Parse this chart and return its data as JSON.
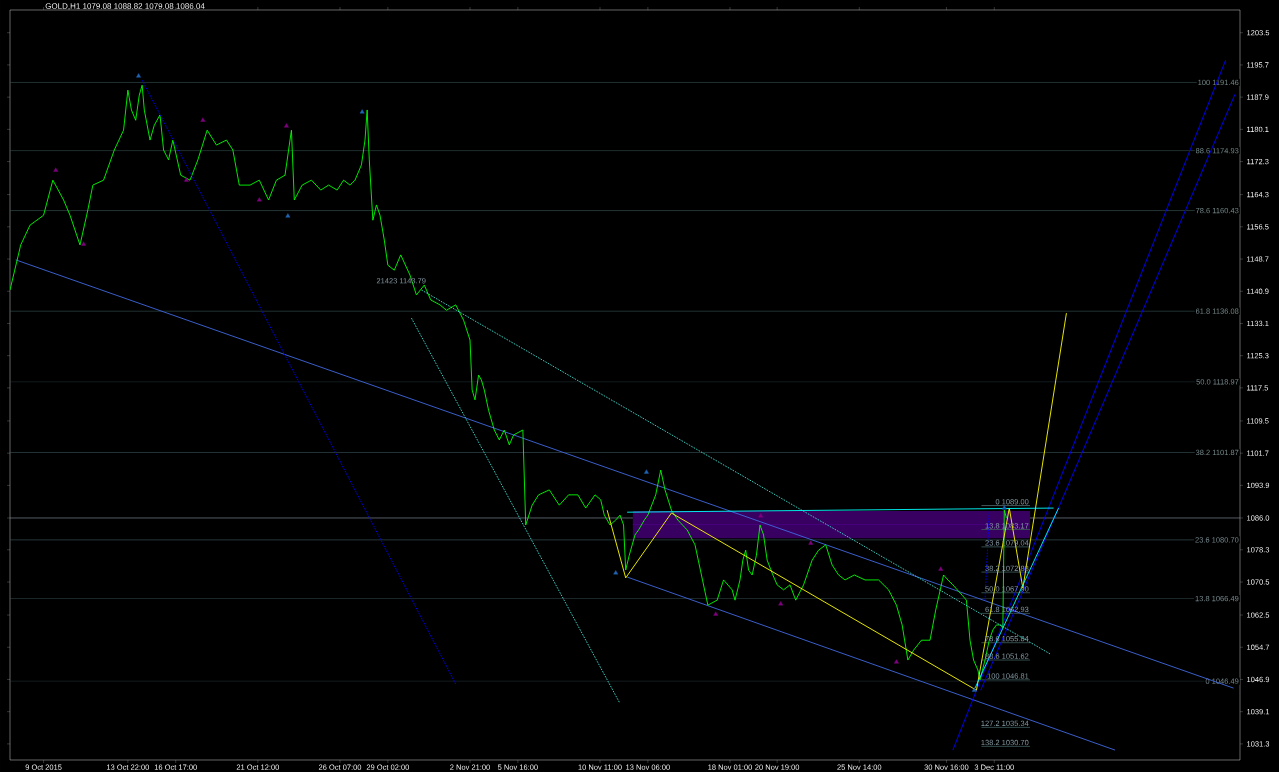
{
  "chart_data": {
    "type": "line",
    "title": "GOLD,H1  1079.08 1088.82 1079.08 1086.04",
    "xlim": [
      "2015-10-07T01:00",
      "2015-12-17T19:00"
    ],
    "ylim": [
      1027.4,
      1209.0
    ],
    "xticks": [
      {
        "value": "2015-10-09",
        "label": "9 Oct 2015"
      },
      {
        "value": "2015-10-13T22:00",
        "label": "13 Oct 22:00"
      },
      {
        "value": "2015-10-16T17:00",
        "label": "16 Oct 17:00"
      },
      {
        "value": "2015-10-21T12:00",
        "label": "21 Oct 12:00"
      },
      {
        "value": "2015-10-26T07:00",
        "label": "26 Oct 07:00"
      },
      {
        "value": "2015-10-29T02:00",
        "label": "29 Oct 02:00"
      },
      {
        "value": "2015-11-02T21:00",
        "label": "2 Nov 21:00"
      },
      {
        "value": "2015-11-05T16:00",
        "label": "5 Nov 16:00"
      },
      {
        "value": "2015-11-10T11:00",
        "label": "10 Nov 11:00"
      },
      {
        "value": "2015-11-13T06:00",
        "label": "13 Nov 06:00"
      },
      {
        "value": "2015-11-18T01:00",
        "label": "18 Nov 01:00"
      },
      {
        "value": "2015-11-20T19:00",
        "label": "20 Nov 19:00"
      },
      {
        "value": "2015-11-25T14:00",
        "label": "25 Nov 14:00"
      },
      {
        "value": "2015-11-30T16:00",
        "label": "30 Nov 16:00"
      },
      {
        "value": "2015-12-03T11:00",
        "label": "3 Dec 11:00"
      }
    ],
    "yticks": [
      1031.3,
      1039.1,
      1046.9,
      1054.7,
      1062.5,
      1070.5,
      1078.3,
      {
        "value": 1086.0,
        "label": "1086.0"
      },
      1093.9,
      1101.7,
      1109.5,
      1117.5,
      1125.3,
      1133.1,
      1140.9,
      1148.7,
      1156.5,
      1164.3,
      1172.3,
      1180.1,
      1187.9,
      1195.7,
      1203.5
    ],
    "ref_lines": [
      {
        "axis": "y",
        "value": 1191.46,
        "label": "100 1191.46",
        "color": "#385454"
      },
      {
        "axis": "y",
        "value": 1174.93,
        "label": "88.6 1174.93",
        "color": "#395556"
      },
      {
        "axis": "y",
        "value": 1160.43,
        "label": "78.6 1160.43",
        "color": "#3a5658"
      },
      {
        "axis": "y",
        "value": 1136.08,
        "label": "61.8 1136.08",
        "color": "#3b575a"
      },
      {
        "axis": "y",
        "value": 1118.97,
        "label": "50.0 1118.97",
        "color": "#3c585c"
      },
      {
        "axis": "y",
        "value": 1101.87,
        "label": "38.2 1101.87",
        "color": "#3d595e"
      },
      {
        "axis": "y",
        "value": 1080.7,
        "label": "23.6 1080.70",
        "color": "#3e5a60"
      },
      {
        "axis": "y",
        "value": 1066.49,
        "label": "13.8 1066.49",
        "color": "#3f5b62"
      },
      {
        "axis": "y",
        "value": 1046.49,
        "label": "0 1046.49",
        "color": "#405c64"
      },
      {
        "axis": "y",
        "value": 1086.0,
        "color": "#8c9aa8"
      }
    ],
    "annotations": [
      {
        "text": "21423 1143.79",
        "x": "2015-10-31T09:00",
        "y": 1142.5
      },
      {
        "text": "0 1089.00",
        "x": "2015-12-05T13:00",
        "y": 1089.0
      },
      {
        "text": "13.8 1083.17",
        "x": "2015-12-05T13:00",
        "y": 1083.17
      },
      {
        "text": "23.6 1079.04",
        "x": "2015-12-05T13:00",
        "y": 1079.04
      },
      {
        "text": "38.2 1072.88",
        "x": "2015-12-05T13:00",
        "y": 1072.88
      },
      {
        "text": "50.0 1067.90",
        "x": "2015-12-05T13:00",
        "y": 1067.9
      },
      {
        "text": "61.8 1062.93",
        "x": "2015-12-05T13:00",
        "y": 1062.93
      },
      {
        "text": "78.6 1055.84",
        "x": "2015-12-05T13:00",
        "y": 1055.84
      },
      {
        "text": "88.6 1051.62",
        "x": "2015-12-05T13:00",
        "y": 1051.62
      },
      {
        "text": "100 1046.81",
        "x": "2015-12-05T13:00",
        "y": 1046.81
      },
      {
        "text": "127.2 1035.34",
        "x": "2015-12-05T13:00",
        "y": 1035.34
      },
      {
        "text": "138.2 1030.70",
        "x": "2015-12-05T13:00",
        "y": 1030.7
      }
    ],
    "series": [
      {
        "type": "line",
        "color": "#4b0082",
        "x": [
          "2015-11-12T09:00",
          "2015-12-05T13:00"
        ],
        "values": [
          1084.4,
          1084.4
        ],
        "lower": [
          1081.1,
          1081.1
        ],
        "upper": [
          1087.7,
          1087.7
        ]
      },
      {
        "type": "line",
        "color": "#4a6466",
        "x": [
          "2015-12-02T17:00",
          "2015-12-05T13:00"
        ],
        "values": [
          1089.0,
          1089.0
        ]
      },
      {
        "type": "line",
        "color": "#3a5555",
        "x": [
          "2015-12-02T17:00",
          "2015-12-05T13:00"
        ],
        "values": [
          1083.2,
          1083.2
        ]
      },
      {
        "type": "line",
        "color": "#3a5555",
        "x": [
          "2015-12-02T17:00",
          "2015-12-05T13:00"
        ],
        "values": [
          1079.0,
          1079.0
        ]
      },
      {
        "type": "line",
        "color": "#3a5555",
        "x": [
          "2015-12-02T17:00",
          "2015-12-05T13:00"
        ],
        "values": [
          1072.9,
          1072.9
        ]
      },
      {
        "type": "line",
        "color": "#3a5555",
        "x": [
          "2015-12-02T17:00",
          "2015-12-05T13:00"
        ],
        "values": [
          1067.9,
          1067.9
        ]
      },
      {
        "type": "line",
        "color": "#3a5555",
        "x": [
          "2015-12-02T17:00",
          "2015-12-05T13:00"
        ],
        "values": [
          1062.9,
          1062.9
        ]
      },
      {
        "type": "line",
        "color": "#3a5555",
        "x": [
          "2015-12-02T17:00",
          "2015-12-05T13:00"
        ],
        "values": [
          1055.8,
          1055.8
        ]
      },
      {
        "type": "line",
        "color": "#3a5555",
        "x": [
          "2015-12-02T17:00",
          "2015-12-05T13:00"
        ],
        "values": [
          1051.6,
          1051.6
        ]
      },
      {
        "type": "line",
        "color": "#3a5555",
        "x": [
          "2015-12-02T17:00",
          "2015-12-05T13:00"
        ],
        "values": [
          1046.8,
          1046.8
        ]
      },
      {
        "type": "line",
        "color": "#3a5555",
        "x": [
          "2015-12-02T17:00",
          "2015-12-05T13:00"
        ],
        "values": [
          1035.3,
          1035.3
        ]
      },
      {
        "type": "line",
        "color": "#3a5555",
        "x": [
          "2015-12-02T17:00",
          "2015-12-05T13:00"
        ],
        "values": [
          1030.7,
          1030.7
        ]
      },
      {
        "type": "line",
        "color": "#4169e1",
        "x": [
          "2015-10-07T09:00",
          "2015-12-17T10:00"
        ],
        "values": [
          1148.5,
          1044.8
        ]
      },
      {
        "type": "line",
        "color": "#4169e1",
        "x": [
          "2015-11-12T01:00",
          "2015-12-10T12:00"
        ],
        "values": [
          1071.7,
          1029.8
        ]
      },
      {
        "type": "line",
        "color": "#0000ff",
        "x": [
          "2015-12-01T01:00",
          "2015-12-16T23:00"
        ],
        "values": [
          1029.8,
          1196.9
        ]
      },
      {
        "type": "line",
        "color": "#0000ff",
        "x": [
          "2015-12-02T16:00",
          "2015-12-17T12:00"
        ],
        "values": [
          1044.3,
          1188.6
        ]
      },
      {
        "type": "line",
        "color": "#0000ff",
        "line_style": "dotted",
        "x": [
          "2015-10-14T18:00",
          "2015-11-02T01:00"
        ],
        "values": [
          1192.0,
          1045.8
        ]
      },
      {
        "type": "line",
        "color": "#0000ff",
        "line_style": "dotted",
        "x": [
          "2015-12-03T04:00",
          "2015-12-02T22:00"
        ],
        "values": [
          1087.4,
          1066.1
        ]
      },
      {
        "type": "line",
        "color": "#40e0d0",
        "line_style": "dotted",
        "x": [
          "2015-10-31T01:00",
          "2015-12-06T17:00"
        ],
        "values": [
          1141.2,
          1053.1
        ]
      },
      {
        "type": "line",
        "color": "#40e0d0",
        "line_style": "dotted",
        "x": [
          "2015-10-30T11:00",
          "2015-11-11T14:00"
        ],
        "values": [
          1134.4,
          1041.4
        ]
      },
      {
        "color": "#00ff00",
        "x": [
          "2015-10-07T01:00",
          "2015-10-07T16:00",
          "2015-10-08T05:00",
          "2015-10-09T00:00",
          "2015-10-09T13:00",
          "2015-10-10T04:00",
          "2015-10-10T13:00",
          "2015-10-11T03:00",
          "2015-10-11T14:00",
          "2015-10-11T21:00",
          "2015-10-12T12:00",
          "2015-10-13T03:00",
          "2015-10-13T16:00",
          "2015-10-13T22:00",
          "2015-10-14T03:00",
          "2015-10-14T09:00",
          "2015-10-14T14:00",
          "2015-10-14T18:00",
          "2015-10-14T21:00",
          "2015-10-15T05:00",
          "2015-10-15T11:00",
          "2015-10-15T19:00",
          "2015-10-16T00:00",
          "2015-10-16T07:00",
          "2015-10-16T13:00",
          "2015-10-17T00:00",
          "2015-10-17T13:00",
          "2015-10-18T00:00",
          "2015-10-18T13:00",
          "2015-10-19T02:00",
          "2015-10-19T16:00",
          "2015-10-20T01:00",
          "2015-10-20T10:00",
          "2015-10-21T01:00",
          "2015-10-21T14:00",
          "2015-10-22T03:00",
          "2015-10-22T14:00",
          "2015-10-23T02:00",
          "2015-10-23T11:00",
          "2015-10-23T15:00",
          "2015-10-24T02:00",
          "2015-10-24T15:00",
          "2015-10-25T04:00",
          "2015-10-25T15:00",
          "2015-10-26T03:00",
          "2015-10-26T12:00",
          "2015-10-26T21:00",
          "2015-10-27T04:00",
          "2015-10-27T13:00",
          "2015-10-27T18:00",
          "2015-10-27T21:00",
          "2015-10-28T00:00",
          "2015-10-28T05:00",
          "2015-10-28T10:00",
          "2015-10-28T15:00",
          "2015-10-28T21:00",
          "2015-10-29T02:00",
          "2015-10-29T11:00",
          "2015-10-29T20:00",
          "2015-10-30T09:00",
          "2015-10-30T18:00",
          "2015-10-31T05:00",
          "2015-10-31T14:00",
          "2015-11-01T03:00",
          "2015-11-01T12:00",
          "2015-11-02T01:00",
          "2015-11-02T12:00",
          "2015-11-02T21:00",
          "2015-11-03T00:00",
          "2015-11-03T04:00",
          "2015-11-03T09:00",
          "2015-11-03T13:00",
          "2015-11-03T17:00",
          "2015-11-03T23:00",
          "2015-11-04T07:00",
          "2015-11-04T14:00",
          "2015-11-04T21:00",
          "2015-11-05T04:00",
          "2015-11-05T10:00",
          "2015-11-05T23:00",
          "2015-11-06T03:00",
          "2015-11-06T12:00",
          "2015-11-06T21:00",
          "2015-11-07T12:00",
          "2015-11-08T02:00",
          "2015-11-08T15:00",
          "2015-11-09T04:00",
          "2015-11-09T15:00",
          "2015-11-10T04:00",
          "2015-11-10T12:00",
          "2015-11-10T17:00",
          "2015-11-11T01:00",
          "2015-11-11T09:00",
          "2015-11-11T15:00",
          "2015-11-11T20:00",
          "2015-11-11T23:00",
          "2015-11-12T04:00",
          "2015-11-12T12:00",
          "2015-11-12T17:00",
          "2015-11-13T01:00",
          "2015-11-13T06:00",
          "2015-11-13T17:00",
          "2015-11-14T00:00",
          "2015-11-14T06:00",
          "2015-11-14T15:00",
          "2015-11-15T00:00",
          "2015-11-15T13:00",
          "2015-11-16T00:00",
          "2015-11-16T09:00",
          "2015-11-16T18:00",
          "2015-11-17T07:00",
          "2015-11-17T16:00",
          "2015-11-18T04:00",
          "2015-11-18T08:00",
          "2015-11-18T15:00",
          "2015-11-18T19:00",
          "2015-11-18T23:00",
          "2015-11-19T03:00",
          "2015-11-19T08:00",
          "2015-11-19T14:00",
          "2015-11-19T19:00",
          "2015-11-20T00:00",
          "2015-11-20T05:00",
          "2015-11-20T13:00",
          "2015-11-20T19:00",
          "2015-11-21T04:00",
          "2015-11-21T13:00",
          "2015-11-21T21:00",
          "2015-11-22T08:00",
          "2015-11-22T20:00",
          "2015-11-23T05:00",
          "2015-11-23T15:00",
          "2015-11-24T00:00",
          "2015-11-24T09:00",
          "2015-11-24T18:00",
          "2015-11-25T07:00",
          "2015-11-25T22:00",
          "2015-11-26T17:00",
          "2015-11-27T07:00",
          "2015-11-27T18:00",
          "2015-11-28T02:00",
          "2015-11-28T10:00",
          "2015-11-28T18:00",
          "2015-11-29T05:00",
          "2015-11-29T17:00",
          "2015-11-30T01:00",
          "2015-11-30T12:00",
          "2015-11-30T18:00",
          "2015-12-01T01:00",
          "2015-12-01T14:00",
          "2015-12-01T20:00",
          "2015-12-02T01:00",
          "2015-12-02T06:00",
          "2015-12-02T12:00",
          "2015-12-02T15:00",
          "2015-12-02T22:00",
          "2015-12-03T04:00",
          "2015-12-03T09:00",
          "2015-12-03T14:00",
          "2015-12-03T20:00",
          "2015-12-03T23:00",
          "2015-12-04T01:00",
          "2015-12-04T04:00"
        ],
        "values": [
          1141.2,
          1152.1,
          1156.9,
          1159.3,
          1167.8,
          1163.0,
          1159.3,
          1152.1,
          1160.6,
          1166.6,
          1167.8,
          1175.1,
          1179.9,
          1189.6,
          1184.8,
          1182.3,
          1188.4,
          1190.8,
          1184.8,
          1177.5,
          1181.1,
          1183.6,
          1175.1,
          1172.7,
          1177.5,
          1169.0,
          1167.8,
          1172.7,
          1179.9,
          1176.3,
          1177.5,
          1175.1,
          1166.6,
          1166.6,
          1167.8,
          1163.0,
          1167.8,
          1169.0,
          1179.9,
          1163.0,
          1166.6,
          1167.8,
          1165.4,
          1166.6,
          1165.4,
          1167.8,
          1166.6,
          1167.8,
          1171.5,
          1177.5,
          1184.8,
          1172.7,
          1158.1,
          1161.8,
          1159.3,
          1153.3,
          1147.2,
          1146.0,
          1149.7,
          1144.8,
          1140.0,
          1142.4,
          1138.8,
          1137.6,
          1136.3,
          1137.6,
          1133.9,
          1129.1,
          1117.0,
          1114.6,
          1120.6,
          1119.4,
          1117.0,
          1112.1,
          1107.3,
          1104.9,
          1107.3,
          1103.7,
          1106.1,
          1107.3,
          1084.3,
          1089.1,
          1091.6,
          1092.8,
          1089.1,
          1091.6,
          1091.6,
          1088.4,
          1091.6,
          1090.4,
          1086.7,
          1084.3,
          1085.5,
          1086.7,
          1084.3,
          1073.4,
          1077.0,
          1081.9,
          1083.1,
          1085.5,
          1086.7,
          1091.6,
          1097.6,
          1092.8,
          1087.9,
          1085.5,
          1083.1,
          1079.5,
          1072.2,
          1064.9,
          1066.1,
          1071.0,
          1068.6,
          1066.1,
          1071.0,
          1075.8,
          1078.2,
          1073.4,
          1072.2,
          1077.0,
          1084.3,
          1081.9,
          1075.8,
          1072.2,
          1069.8,
          1068.6,
          1069.8,
          1066.1,
          1069.8,
          1075.8,
          1078.2,
          1079.5,
          1074.6,
          1072.2,
          1071.0,
          1072.2,
          1071.0,
          1071.0,
          1068.6,
          1064.9,
          1060.1,
          1051.6,
          1054.0,
          1056.4,
          1056.4,
          1063.7,
          1072.2,
          1071.0,
          1069.8,
          1067.3,
          1066.1,
          1056.4,
          1051.6,
          1049.2,
          1046.8,
          1051.6,
          1056.4,
          1058.9,
          1060.1,
          1060.1,
          1059.4,
          1087.9,
          1086.0
        ]
      },
      {
        "type": "scatter",
        "color": "#800080",
        "marker": "triangle",
        "x": [
          "2015-10-09T17:00",
          "2015-10-11T08:00",
          "2015-10-18T07:00",
          "2015-10-17T08:00",
          "2015-10-21T14:00",
          "2015-10-23T04:00",
          "2015-11-17T05:00",
          "2015-11-21T00:00",
          "2015-11-22T18:00",
          "2015-11-27T18:00",
          "2015-11-30T08:00",
          "2015-11-19T20:00"
        ],
        "values": [
          1170.2,
          1152.3,
          1182.3,
          1167.8,
          1163.0,
          1180.9,
          1062.7,
          1065.2,
          1079.9,
          1051.1,
          1073.6,
          1086.5
        ]
      },
      {
        "type": "scatter",
        "color": "#1e64b4",
        "marker": "triangle",
        "x": [
          "2015-10-14T13:00",
          "2015-10-27T14:00",
          "2015-10-23T06:00",
          "2015-11-11T09:00",
          "2015-11-13T04:00",
          "2015-12-04T01:00",
          "2015-12-02T07:00"
        ],
        "values": [
          1193.0,
          1184.3,
          1159.1,
          1072.7,
          1097.1,
          1088.4,
          1044.3
        ]
      },
      {
        "type": "line",
        "color": "#ffff00",
        "x": [
          "2015-11-10T21:00",
          "2015-11-11T23:00",
          "2015-11-14T15:00",
          "2015-12-02T10:00",
          "2015-12-04T08:00",
          "2015-12-05T03:00",
          "2015-12-07T16:00"
        ],
        "values": [
          1087.9,
          1071.5,
          1087.2,
          1044.3,
          1088.4,
          1069.0,
          1135.6
        ]
      },
      {
        "type": "line",
        "color": "#00ffff",
        "x": [
          "2015-11-12T01:00",
          "2015-12-06T22:00"
        ],
        "values": [
          1087.4,
          1088.4
        ]
      },
      {
        "type": "line",
        "color": "#00ffff",
        "x": [
          "2015-12-02T08:00",
          "2015-12-07T05:00"
        ],
        "values": [
          1044.8,
          1088.4
        ]
      }
    ]
  }
}
